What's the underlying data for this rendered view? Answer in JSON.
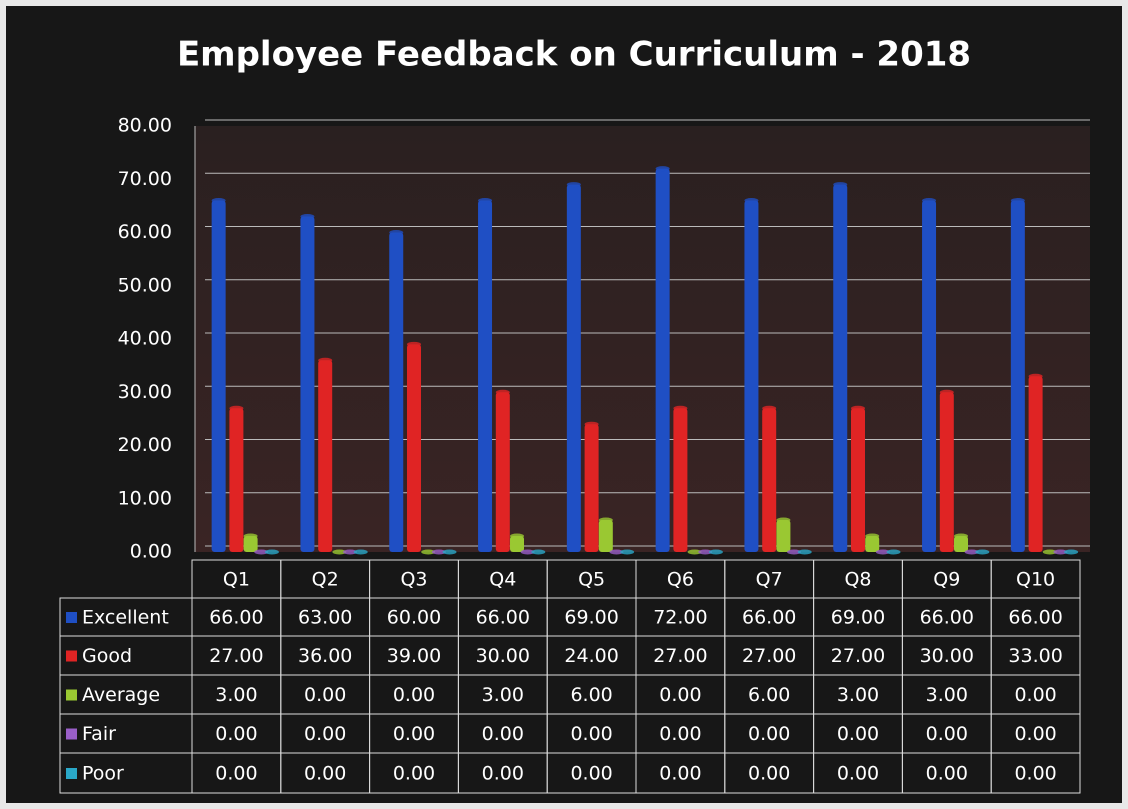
{
  "chart_data": {
    "type": "bar",
    "title": "Employee Feedback on Curriculum - 2018",
    "categories": [
      "Q1",
      "Q2",
      "Q3",
      "Q4",
      "Q5",
      "Q6",
      "Q7",
      "Q8",
      "Q9",
      "Q10"
    ],
    "ylim": [
      0,
      80
    ],
    "yticks": [
      {
        "value": 0,
        "label": "0.00"
      },
      {
        "value": 10,
        "label": "10.00"
      },
      {
        "value": 20,
        "label": "20.00"
      },
      {
        "value": 30,
        "label": "30.00"
      },
      {
        "value": 40,
        "label": "40.00"
      },
      {
        "value": 50,
        "label": "50.00"
      },
      {
        "value": 60,
        "label": "60.00"
      },
      {
        "value": 70,
        "label": "70.00"
      },
      {
        "value": 80,
        "label": "80.00"
      }
    ],
    "grid": true,
    "series": [
      {
        "name": "Excellent",
        "color": "#1f4fc4",
        "values": [
          66,
          63,
          60,
          66,
          69,
          72,
          66,
          69,
          66,
          66
        ],
        "value_labels": [
          "66.00",
          "63.00",
          "60.00",
          "66.00",
          "69.00",
          "72.00",
          "66.00",
          "69.00",
          "66.00",
          "66.00"
        ]
      },
      {
        "name": "Good",
        "color": "#e02424",
        "values": [
          27,
          36,
          39,
          30,
          24,
          27,
          27,
          27,
          30,
          33
        ],
        "value_labels": [
          "27.00",
          "36.00",
          "39.00",
          "30.00",
          "24.00",
          "27.00",
          "27.00",
          "27.00",
          "30.00",
          "33.00"
        ]
      },
      {
        "name": "Average",
        "color": "#9ac832",
        "values": [
          3,
          0,
          0,
          3,
          6,
          0,
          6,
          3,
          3,
          0
        ],
        "value_labels": [
          "3.00",
          "0.00",
          "0.00",
          "3.00",
          "6.00",
          "0.00",
          "6.00",
          "3.00",
          "3.00",
          "0.00"
        ]
      },
      {
        "name": "Fair",
        "color": "#9a5fc8",
        "values": [
          0,
          0,
          0,
          0,
          0,
          0,
          0,
          0,
          0,
          0
        ],
        "value_labels": [
          "0.00",
          "0.00",
          "0.00",
          "0.00",
          "0.00",
          "0.00",
          "0.00",
          "0.00",
          "0.00",
          "0.00"
        ]
      },
      {
        "name": "Poor",
        "color": "#2aa8c8",
        "values": [
          0,
          0,
          0,
          0,
          0,
          0,
          0,
          0,
          0,
          0
        ],
        "value_labels": [
          "0.00",
          "0.00",
          "0.00",
          "0.00",
          "0.00",
          "0.00",
          "0.00",
          "0.00",
          "0.00",
          "0.00"
        ]
      }
    ]
  }
}
